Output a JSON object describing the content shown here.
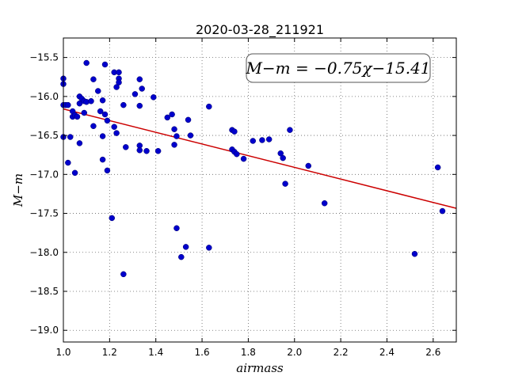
{
  "chart_data": {
    "type": "scatter",
    "title": "2020-03-28_211921",
    "xlabel": "airmass",
    "ylabel": "M−m",
    "xlim": [
      1.0,
      2.7
    ],
    "ylim": [
      -19.15,
      -15.25
    ],
    "y_inverted": true,
    "grid": true,
    "xticks": [
      1.0,
      1.2,
      1.4,
      1.6,
      1.8,
      2.0,
      2.2,
      2.4,
      2.6
    ],
    "xtick_labels": [
      "1.0",
      "1.2",
      "1.4",
      "1.6",
      "1.8",
      "2.0",
      "2.2",
      "2.4",
      "2.6"
    ],
    "yticks": [
      -15.5,
      -16.0,
      -16.5,
      -17.0,
      -17.5,
      -18.0,
      -18.5,
      -19.0
    ],
    "ytick_labels": [
      "−15.5",
      "−16.0",
      "−16.5",
      "−17.0",
      "−17.5",
      "−18.0",
      "−18.5",
      "−19.0"
    ],
    "annotation": "M−m = −0.75χ−15.41",
    "annotation_position": "top-right",
    "fit": {
      "slope": -0.75,
      "intercept": -15.41,
      "color": "#cc0000"
    },
    "point_color": "#0000cc",
    "points": [
      [
        1.0,
        -15.77
      ],
      [
        1.0,
        -15.84
      ],
      [
        1.0,
        -16.11
      ],
      [
        1.0,
        -16.52
      ],
      [
        1.01,
        -16.11
      ],
      [
        1.02,
        -16.11
      ],
      [
        1.02,
        -16.85
      ],
      [
        1.03,
        -16.52
      ],
      [
        1.04,
        -16.19
      ],
      [
        1.04,
        -16.26
      ],
      [
        1.05,
        -16.24
      ],
      [
        1.05,
        -16.98
      ],
      [
        1.06,
        -16.26
      ],
      [
        1.07,
        -16.09
      ],
      [
        1.07,
        -16.6
      ],
      [
        1.07,
        -16.0
      ],
      [
        1.08,
        -16.03
      ],
      [
        1.09,
        -16.21
      ],
      [
        1.09,
        -16.06
      ],
      [
        1.1,
        -15.57
      ],
      [
        1.1,
        -16.07
      ],
      [
        1.12,
        -16.06
      ],
      [
        1.13,
        -15.78
      ],
      [
        1.13,
        -16.38
      ],
      [
        1.15,
        -15.93
      ],
      [
        1.16,
        -16.19
      ],
      [
        1.17,
        -16.05
      ],
      [
        1.17,
        -16.51
      ],
      [
        1.17,
        -16.81
      ],
      [
        1.18,
        -15.59
      ],
      [
        1.18,
        -16.23
      ],
      [
        1.19,
        -16.31
      ],
      [
        1.19,
        -16.95
      ],
      [
        1.21,
        -17.56
      ],
      [
        1.22,
        -15.69
      ],
      [
        1.22,
        -16.39
      ],
      [
        1.23,
        -16.47
      ],
      [
        1.23,
        -15.88
      ],
      [
        1.24,
        -15.77
      ],
      [
        1.24,
        -15.82
      ],
      [
        1.24,
        -15.69
      ],
      [
        1.26,
        -18.28
      ],
      [
        1.26,
        -16.11
      ],
      [
        1.27,
        -16.65
      ],
      [
        1.31,
        -15.97
      ],
      [
        1.33,
        -15.78
      ],
      [
        1.33,
        -16.12
      ],
      [
        1.33,
        -16.63
      ],
      [
        1.33,
        -16.69
      ],
      [
        1.34,
        -15.9
      ],
      [
        1.36,
        -16.7
      ],
      [
        1.39,
        -16.01
      ],
      [
        1.41,
        -16.7
      ],
      [
        1.45,
        -16.27
      ],
      [
        1.47,
        -16.23
      ],
      [
        1.48,
        -16.62
      ],
      [
        1.48,
        -16.42
      ],
      [
        1.49,
        -16.51
      ],
      [
        1.49,
        -17.69
      ],
      [
        1.51,
        -18.06
      ],
      [
        1.53,
        -17.93
      ],
      [
        1.54,
        -16.3
      ],
      [
        1.55,
        -16.5
      ],
      [
        1.63,
        -16.13
      ],
      [
        1.63,
        -17.94
      ],
      [
        1.73,
        -16.43
      ],
      [
        1.73,
        -16.68
      ],
      [
        1.74,
        -16.45
      ],
      [
        1.74,
        -16.71
      ],
      [
        1.75,
        -16.74
      ],
      [
        1.78,
        -16.8
      ],
      [
        1.82,
        -16.57
      ],
      [
        1.86,
        -16.56
      ],
      [
        1.89,
        -16.55
      ],
      [
        1.94,
        -16.73
      ],
      [
        1.95,
        -16.79
      ],
      [
        1.96,
        -17.12
      ],
      [
        1.98,
        -16.43
      ],
      [
        2.06,
        -16.89
      ],
      [
        2.13,
        -17.37
      ],
      [
        2.52,
        -18.02
      ],
      [
        2.62,
        -16.91
      ],
      [
        2.64,
        -17.47
      ]
    ]
  }
}
